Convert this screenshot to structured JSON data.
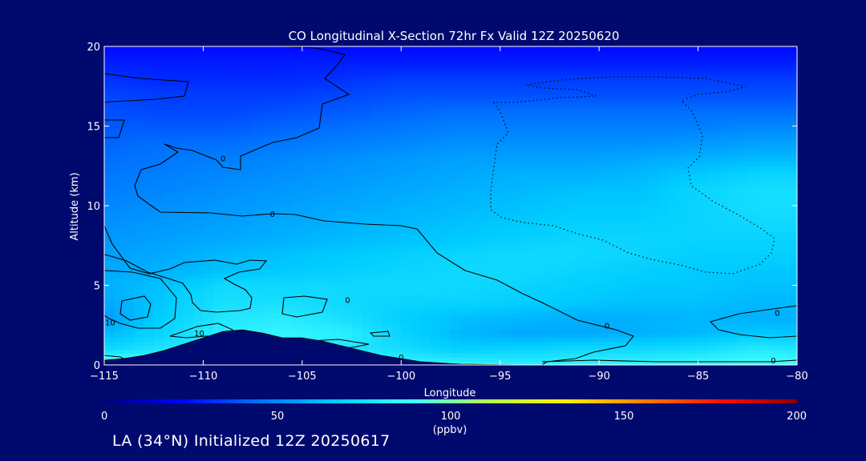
{
  "chart_data": {
    "type": "heatmap",
    "title": "CO Longitudinal X-Section 72hr  Fx Valid 12Z 20250620",
    "xlabel": "Longitude",
    "ylabel": "Altitude (km)",
    "xlim": [
      -115,
      -80
    ],
    "ylim": [
      0,
      20
    ],
    "x_ticks": [
      -115,
      -110,
      -105,
      -100,
      -95,
      -90,
      -85,
      -80
    ],
    "x_tick_labels": [
      "−115",
      "−110",
      "−105",
      "−100",
      "−95",
      "−90",
      "−85",
      "−80"
    ],
    "y_ticks": [
      0,
      5,
      10,
      15,
      20
    ],
    "y_tick_labels": [
      "0",
      "5",
      "10",
      "15",
      "20"
    ],
    "colorbar": {
      "min": 0,
      "max": 200,
      "ticks": [
        0,
        50,
        100,
        150,
        200
      ],
      "tick_labels": [
        "0",
        "50",
        "100",
        "150",
        "200"
      ],
      "unit_label": "(ppbv)",
      "colors": [
        "#00007a",
        "#0000ff",
        "#0070ff",
        "#00ccff",
        "#40ffff",
        "#b0ff50",
        "#ffee00",
        "#ff8000",
        "#ff1000",
        "#8a0000"
      ]
    },
    "terrain": [
      {
        "lon": -115,
        "alt": 0.3
      },
      {
        "lon": -114,
        "alt": 0.4
      },
      {
        "lon": -113,
        "alt": 0.6
      },
      {
        "lon": -112,
        "alt": 0.9
      },
      {
        "lon": -111,
        "alt": 1.3
      },
      {
        "lon": -110,
        "alt": 1.7
      },
      {
        "lon": -109,
        "alt": 2.1
      },
      {
        "lon": -108,
        "alt": 2.2
      },
      {
        "lon": -107,
        "alt": 2.0
      },
      {
        "lon": -106,
        "alt": 1.7
      },
      {
        "lon": -105,
        "alt": 1.7
      },
      {
        "lon": -104,
        "alt": 1.5
      },
      {
        "lon": -103,
        "alt": 1.2
      },
      {
        "lon": -102,
        "alt": 0.9
      },
      {
        "lon": -101,
        "alt": 0.6
      },
      {
        "lon": -100,
        "alt": 0.4
      },
      {
        "lon": -99,
        "alt": 0.2
      },
      {
        "lon": -97,
        "alt": 0.05
      },
      {
        "lon": -94,
        "alt": 0.0
      },
      {
        "lon": -80,
        "alt": 0.0
      }
    ],
    "co_field_ppbv": {
      "altitudes_km": [
        0,
        1,
        2,
        3,
        4,
        5,
        6,
        7,
        8,
        9,
        10,
        11,
        12,
        13,
        14,
        15,
        16,
        17,
        18,
        19,
        20
      ],
      "longitudes": [
        -115,
        -112,
        -109,
        -106,
        -103,
        -100,
        -97,
        -94,
        -91,
        -88,
        -85,
        -82,
        -80
      ],
      "values": [
        [
          100,
          95,
          95,
          95,
          95,
          85,
          85,
          82,
          85,
          85,
          88,
          90,
          90
        ],
        [
          72,
          78,
          80,
          78,
          78,
          74,
          68,
          70,
          72,
          72,
          74,
          80,
          78
        ],
        [
          62,
          70,
          82,
          85,
          82,
          70,
          62,
          58,
          58,
          60,
          62,
          66,
          65
        ],
        [
          55,
          68,
          78,
          80,
          75,
          68,
          64,
          62,
          60,
          60,
          62,
          60,
          60
        ],
        [
          58,
          66,
          75,
          74,
          72,
          70,
          70,
          68,
          66,
          64,
          64,
          62,
          62
        ],
        [
          60,
          64,
          72,
          72,
          72,
          72,
          72,
          70,
          68,
          66,
          66,
          64,
          64
        ],
        [
          58,
          60,
          64,
          66,
          68,
          70,
          72,
          72,
          70,
          68,
          66,
          66,
          66
        ],
        [
          56,
          58,
          62,
          64,
          66,
          68,
          70,
          72,
          72,
          70,
          68,
          68,
          68
        ],
        [
          54,
          56,
          58,
          60,
          62,
          64,
          66,
          68,
          70,
          70,
          70,
          70,
          70
        ],
        [
          52,
          54,
          56,
          58,
          60,
          62,
          64,
          66,
          68,
          68,
          70,
          72,
          72
        ],
        [
          50,
          52,
          54,
          56,
          58,
          60,
          62,
          64,
          66,
          66,
          70,
          74,
          74
        ],
        [
          48,
          50,
          52,
          54,
          56,
          58,
          60,
          62,
          64,
          64,
          70,
          74,
          74
        ],
        [
          46,
          48,
          50,
          52,
          54,
          56,
          58,
          60,
          60,
          62,
          66,
          70,
          70
        ],
        [
          44,
          46,
          48,
          50,
          52,
          54,
          56,
          56,
          56,
          58,
          60,
          62,
          62
        ],
        [
          42,
          44,
          44,
          46,
          48,
          50,
          52,
          52,
          52,
          52,
          54,
          56,
          56
        ],
        [
          40,
          40,
          40,
          42,
          44,
          46,
          48,
          48,
          48,
          48,
          48,
          50,
          50
        ],
        [
          38,
          36,
          36,
          38,
          40,
          42,
          44,
          44,
          44,
          44,
          44,
          44,
          44
        ],
        [
          36,
          34,
          34,
          34,
          36,
          38,
          38,
          38,
          38,
          38,
          38,
          38,
          38
        ],
        [
          32,
          30,
          30,
          30,
          32,
          34,
          34,
          34,
          34,
          34,
          34,
          34,
          34
        ],
        [
          28,
          28,
          28,
          28,
          28,
          28,
          28,
          28,
          28,
          28,
          28,
          28,
          28
        ],
        [
          24,
          24,
          24,
          24,
          24,
          24,
          24,
          24,
          24,
          24,
          24,
          24,
          24
        ]
      ]
    },
    "contour_labels": [
      {
        "text": "0",
        "lon": -109,
        "alt": 13.0
      },
      {
        "text": "0",
        "lon": -106.5,
        "alt": 9.5
      },
      {
        "text": "0",
        "lon": -102.7,
        "alt": 4.1
      },
      {
        "text": "10",
        "lon": -114.7,
        "alt": 2.7
      },
      {
        "text": "10",
        "lon": -110.2,
        "alt": 2.0
      },
      {
        "text": "0",
        "lon": -100,
        "alt": 0.5
      },
      {
        "text": "0",
        "lon": -89.6,
        "alt": 2.5
      },
      {
        "text": "0",
        "lon": -81,
        "alt": 3.3
      },
      {
        "text": "0",
        "lon": -81.2,
        "alt": 0.3
      }
    ]
  },
  "footer": {
    "text": "LA (34°N) Initialized 12Z 20250617"
  }
}
